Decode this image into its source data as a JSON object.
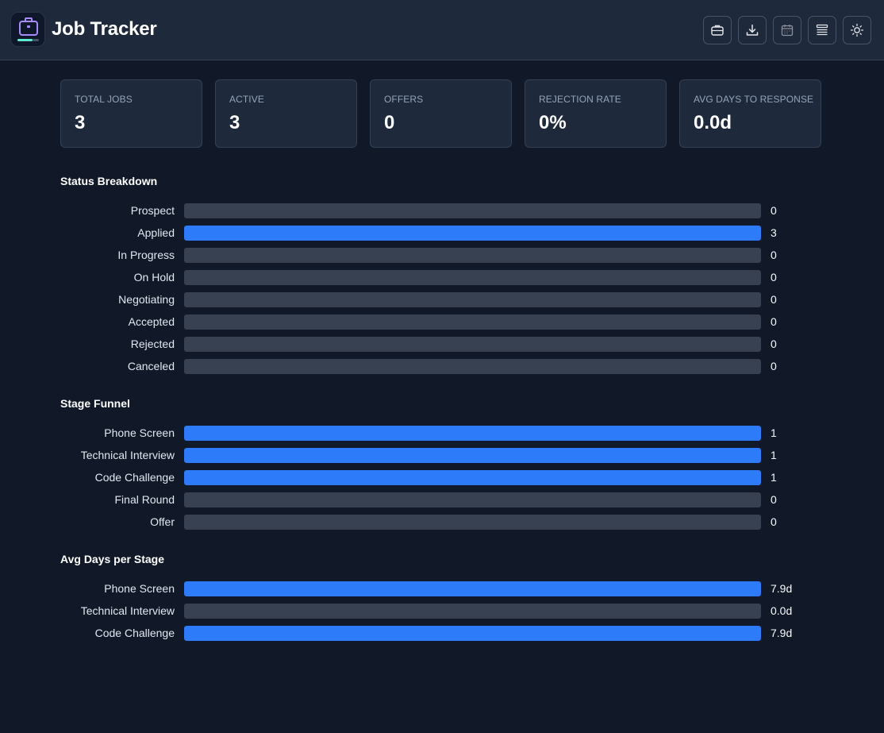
{
  "app": {
    "title": "Job Tracker"
  },
  "toolbar": [
    {
      "name": "briefcase-button",
      "icon": "briefcase-icon",
      "dim": false
    },
    {
      "name": "download-button",
      "icon": "download-icon",
      "dim": false
    },
    {
      "name": "calendar-button",
      "icon": "calendar-icon",
      "dim": true
    },
    {
      "name": "list-button",
      "icon": "list-icon",
      "dim": false
    },
    {
      "name": "theme-button",
      "icon": "sun-icon",
      "dim": false
    }
  ],
  "stats": [
    {
      "label": "Total Jobs",
      "value": "3"
    },
    {
      "label": "Active",
      "value": "3"
    },
    {
      "label": "Offers",
      "value": "0"
    },
    {
      "label": "Rejection Rate",
      "value": "0%"
    },
    {
      "label": "Avg Days to Response",
      "value": "0.0d"
    }
  ],
  "sections": [
    {
      "title": "Status Breakdown",
      "rows": [
        {
          "label": "Prospect",
          "value": "0",
          "fill": 0
        },
        {
          "label": "Applied",
          "value": "3",
          "fill": 1
        },
        {
          "label": "In Progress",
          "value": "0",
          "fill": 0
        },
        {
          "label": "On Hold",
          "value": "0",
          "fill": 0
        },
        {
          "label": "Negotiating",
          "value": "0",
          "fill": 0
        },
        {
          "label": "Accepted",
          "value": "0",
          "fill": 0
        },
        {
          "label": "Rejected",
          "value": "0",
          "fill": 0
        },
        {
          "label": "Canceled",
          "value": "0",
          "fill": 0
        }
      ]
    },
    {
      "title": "Stage Funnel",
      "rows": [
        {
          "label": "Phone Screen",
          "value": "1",
          "fill": 1
        },
        {
          "label": "Technical Interview",
          "value": "1",
          "fill": 1
        },
        {
          "label": "Code Challenge",
          "value": "1",
          "fill": 1
        },
        {
          "label": "Final Round",
          "value": "0",
          "fill": 0
        },
        {
          "label": "Offer",
          "value": "0",
          "fill": 0
        }
      ]
    },
    {
      "title": "Avg Days per Stage",
      "rows": [
        {
          "label": "Phone Screen",
          "value": "7.9d",
          "fill": 1
        },
        {
          "label": "Technical Interview",
          "value": "0.0d",
          "fill": 0
        },
        {
          "label": "Code Challenge",
          "value": "7.9d",
          "fill": 1
        }
      ]
    }
  ],
  "colors": {
    "accent": "#2d7bf9",
    "background": "#111827",
    "surface": "#1e293b",
    "track": "#374151"
  }
}
